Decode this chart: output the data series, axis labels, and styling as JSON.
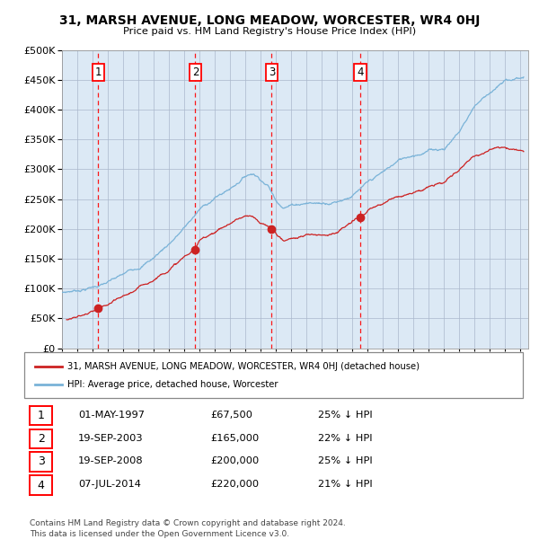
{
  "title": "31, MARSH AVENUE, LONG MEADOW, WORCESTER, WR4 0HJ",
  "subtitle": "Price paid vs. HM Land Registry's House Price Index (HPI)",
  "bg_color": "#dce9f5",
  "hpi_color": "#7ab3d8",
  "price_color": "#cc2222",
  "sales": [
    {
      "label": "1",
      "date_x": 1997.37,
      "price": 67500,
      "date_str": "01-MAY-1997",
      "pct": "25% ↓ HPI"
    },
    {
      "label": "2",
      "date_x": 2003.72,
      "price": 165000,
      "date_str": "19-SEP-2003",
      "pct": "22% ↓ HPI"
    },
    {
      "label": "3",
      "date_x": 2008.72,
      "price": 200000,
      "date_str": "19-SEP-2008",
      "pct": "25% ↓ HPI"
    },
    {
      "label": "4",
      "date_x": 2014.51,
      "price": 220000,
      "date_str": "07-JUL-2014",
      "pct": "21% ↓ HPI"
    }
  ],
  "legend_property_label": "31, MARSH AVENUE, LONG MEADOW, WORCESTER, WR4 0HJ (detached house)",
  "legend_hpi_label": "HPI: Average price, detached house, Worcester",
  "footer": "Contains HM Land Registry data © Crown copyright and database right 2024.\nThis data is licensed under the Open Government Licence v3.0.",
  "ylim": [
    0,
    500000
  ],
  "xlim_start": 1995.0,
  "xlim_end": 2025.5,
  "table_rows": [
    [
      "1",
      "01-MAY-1997",
      "£67,500",
      "25% ↓ HPI"
    ],
    [
      "2",
      "19-SEP-2003",
      "£165,000",
      "22% ↓ HPI"
    ],
    [
      "3",
      "19-SEP-2008",
      "£200,000",
      "25% ↓ HPI"
    ],
    [
      "4",
      "07-JUL-2014",
      "£220,000",
      "21% ↓ HPI"
    ]
  ]
}
